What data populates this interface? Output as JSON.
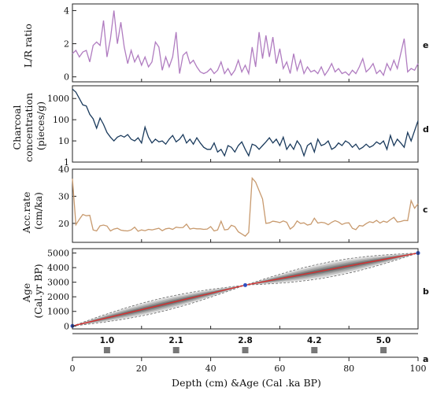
{
  "chart_data": [
    {
      "type": "line",
      "panel": "e",
      "ylabel": "L/R ratio",
      "ylim": [
        -0.3,
        4.4
      ],
      "yticks": [
        "0",
        "2",
        "4"
      ],
      "color": "#b07cc0",
      "x": [
        0,
        1,
        2,
        3,
        4,
        5,
        6,
        7,
        8,
        9,
        10,
        11,
        12,
        13,
        14,
        15,
        16,
        17,
        18,
        19,
        20,
        21,
        22,
        23,
        24,
        25,
        26,
        27,
        28,
        29,
        30,
        31,
        32,
        33,
        34,
        35,
        36,
        37,
        38,
        39,
        40,
        41,
        42,
        43,
        44,
        45,
        46,
        47,
        48,
        49,
        50,
        51,
        52,
        53,
        54,
        55,
        56,
        57,
        58,
        59,
        60,
        61,
        62,
        63,
        64,
        65,
        66,
        67,
        68,
        69,
        70,
        71,
        72,
        73,
        74,
        75,
        76,
        77,
        78,
        79,
        80,
        81,
        82,
        83,
        84,
        85,
        86,
        87,
        88,
        89,
        90,
        91,
        92,
        93,
        94,
        95,
        96,
        97,
        98,
        99,
        100
      ],
      "y": [
        1.4,
        1.6,
        1.2,
        1.5,
        1.6,
        0.9,
        1.9,
        2.1,
        1.9,
        3.4,
        1.2,
        2.3,
        4.0,
        2.0,
        3.3,
        1.8,
        0.8,
        1.6,
        0.9,
        1.3,
        0.7,
        1.2,
        0.6,
        0.9,
        2.1,
        1.8,
        0.4,
        1.2,
        0.6,
        1.2,
        2.7,
        0.2,
        1.3,
        1.5,
        0.8,
        1.0,
        0.6,
        0.3,
        0.2,
        0.3,
        0.5,
        0.2,
        0.4,
        0.9,
        0.2,
        0.5,
        0.1,
        0.4,
        1.0,
        0.3,
        0.7,
        0.2,
        1.8,
        0.6,
        2.7,
        1.1,
        2.5,
        1.2,
        2.4,
        0.8,
        1.7,
        0.5,
        0.9,
        0.2,
        1.4,
        0.4,
        1.0,
        0.2,
        0.6,
        0.3,
        0.4,
        0.2,
        0.6,
        0.1,
        0.4,
        0.8,
        0.3,
        0.5,
        0.2,
        0.3,
        0.1,
        0.4,
        0.2,
        0.6,
        1.1,
        0.3,
        0.5,
        0.8,
        0.2,
        0.4,
        0.1,
        0.8,
        0.4,
        1.0,
        0.5,
        1.4,
        2.3,
        0.3,
        0.5,
        0.4,
        0.8
      ]
    },
    {
      "type": "line",
      "panel": "d",
      "ylabel": "Charcoal concentration (pieces/g)",
      "scale": "log",
      "ylim": [
        1,
        4000
      ],
      "yticks": [
        "1",
        "10",
        "100",
        "1000"
      ],
      "color": "#1a3a5c",
      "x": [
        0,
        1,
        2,
        3,
        4,
        5,
        6,
        7,
        8,
        9,
        10,
        11,
        12,
        13,
        14,
        15,
        16,
        17,
        18,
        19,
        20,
        21,
        22,
        23,
        24,
        25,
        26,
        27,
        28,
        29,
        30,
        31,
        32,
        33,
        34,
        35,
        36,
        37,
        38,
        39,
        40,
        41,
        42,
        43,
        44,
        45,
        46,
        47,
        48,
        49,
        50,
        51,
        52,
        53,
        54,
        55,
        56,
        57,
        58,
        59,
        60,
        61,
        62,
        63,
        64,
        65,
        66,
        67,
        68,
        69,
        70,
        71,
        72,
        73,
        74,
        75,
        76,
        77,
        78,
        79,
        80,
        81,
        82,
        83,
        84,
        85,
        86,
        87,
        88,
        89,
        90,
        91,
        92,
        93,
        94,
        95,
        96,
        97,
        98,
        99,
        100
      ],
      "y": [
        2800,
        2000,
        1000,
        500,
        450,
        180,
        110,
        40,
        120,
        60,
        25,
        15,
        10,
        15,
        18,
        15,
        20,
        12,
        10,
        14,
        8,
        45,
        15,
        8,
        12,
        9,
        10,
        7,
        12,
        18,
        9,
        12,
        20,
        8,
        12,
        7,
        14,
        8,
        5,
        4,
        4,
        8,
        3,
        4,
        2,
        6,
        5,
        3,
        6,
        9,
        4,
        2,
        7,
        6,
        4,
        6,
        9,
        14,
        8,
        12,
        6,
        15,
        4,
        7,
        4,
        10,
        6,
        2,
        6,
        8,
        3,
        12,
        6,
        7,
        10,
        4,
        5,
        8,
        6,
        10,
        8,
        5,
        7,
        4,
        5,
        7,
        5,
        6,
        9,
        7,
        10,
        4,
        18,
        6,
        12,
        8,
        5,
        25,
        10,
        30,
        90
      ]
    },
    {
      "type": "line",
      "panel": "c",
      "ylabel": "Acc.rate (cm/ka)",
      "ylim": [
        13,
        40
      ],
      "yticks": [
        "20",
        "30",
        "40"
      ],
      "color": "#c89a6e",
      "x": [
        0,
        1,
        2,
        3,
        4,
        5,
        6,
        7,
        8,
        9,
        10,
        11,
        12,
        13,
        14,
        15,
        16,
        17,
        18,
        19,
        20,
        21,
        22,
        23,
        24,
        25,
        26,
        27,
        28,
        29,
        30,
        31,
        32,
        33,
        34,
        35,
        36,
        37,
        38,
        39,
        40,
        41,
        42,
        43,
        44,
        45,
        46,
        47,
        48,
        49,
        50,
        51,
        52,
        53,
        54,
        55,
        56,
        57,
        58,
        59,
        60,
        61,
        62,
        63,
        64,
        65,
        66,
        67,
        68,
        69,
        70,
        71,
        72,
        73,
        74,
        75,
        76,
        77,
        78,
        79,
        80,
        81,
        82,
        83,
        84,
        85,
        86,
        87,
        88,
        89,
        90,
        91,
        92,
        93,
        94,
        95,
        96,
        97,
        98,
        99,
        100
      ],
      "y": [
        36.5,
        19.5,
        21.5,
        23.3,
        22.8,
        23.0,
        17.6,
        17.2,
        19.1,
        19.4,
        19.0,
        17.2,
        17.9,
        18.2,
        17.5,
        17.3,
        17.2,
        17.6,
        18.6,
        17.1,
        17.6,
        17.3,
        17.8,
        17.6,
        17.9,
        18.2,
        17.3,
        18.0,
        18.2,
        17.8,
        18.6,
        18.4,
        18.5,
        19.7,
        17.9,
        18.2,
        18.0,
        18.0,
        17.8,
        17.9,
        18.8,
        17.2,
        17.6,
        20.8,
        17.6,
        17.8,
        19.3,
        18.8,
        16.9,
        16.1,
        15.3,
        16.7,
        36.7,
        35.2,
        32.1,
        29.0,
        20.0,
        20.2,
        20.8,
        20.6,
        20.3,
        20.9,
        20.4,
        17.9,
        18.9,
        20.9,
        20.0,
        20.2,
        19.4,
        19.7,
        21.9,
        20.1,
        20.4,
        20.2,
        19.5,
        20.4,
        21.0,
        20.5,
        19.6,
        20.1,
        20.2,
        18.2,
        17.7,
        19.2,
        19.0,
        19.9,
        20.6,
        20.3,
        21.1,
        20.1,
        20.8,
        20.4,
        21.4,
        22.2,
        20.5,
        20.7,
        21.1,
        21.0,
        28.4,
        25.6,
        27.2
      ]
    },
    {
      "type": "area",
      "panel": "b",
      "ylabel": "Age (Cal.yr BP)",
      "ylim": [
        -200,
        5300
      ],
      "yticks": [
        "0",
        "1000",
        "2000",
        "3000",
        "4000",
        "5000"
      ],
      "median_color": "#e03030",
      "band_color": "#1a1a1a",
      "dates_color": "#3050c0",
      "x": [
        0,
        50,
        100
      ],
      "y": [
        0,
        2800,
        5000
      ],
      "dated_points_x": [
        0,
        50,
        100
      ],
      "dated_points_y": [
        0,
        2800,
        5000
      ]
    },
    {
      "type": "bar",
      "panel": "a",
      "xlabel": "Depth (cm) &Age (Cal .ka BP)",
      "xlim": [
        0,
        100
      ],
      "xticks": [
        "0",
        "20",
        "40",
        "60",
        "80",
        "100"
      ],
      "marker_x": [
        10,
        30,
        50,
        70,
        90
      ],
      "marker_labels": [
        "1.0",
        "2.1",
        "2.8",
        "4.2",
        "5.0"
      ],
      "color": "#777777"
    }
  ]
}
